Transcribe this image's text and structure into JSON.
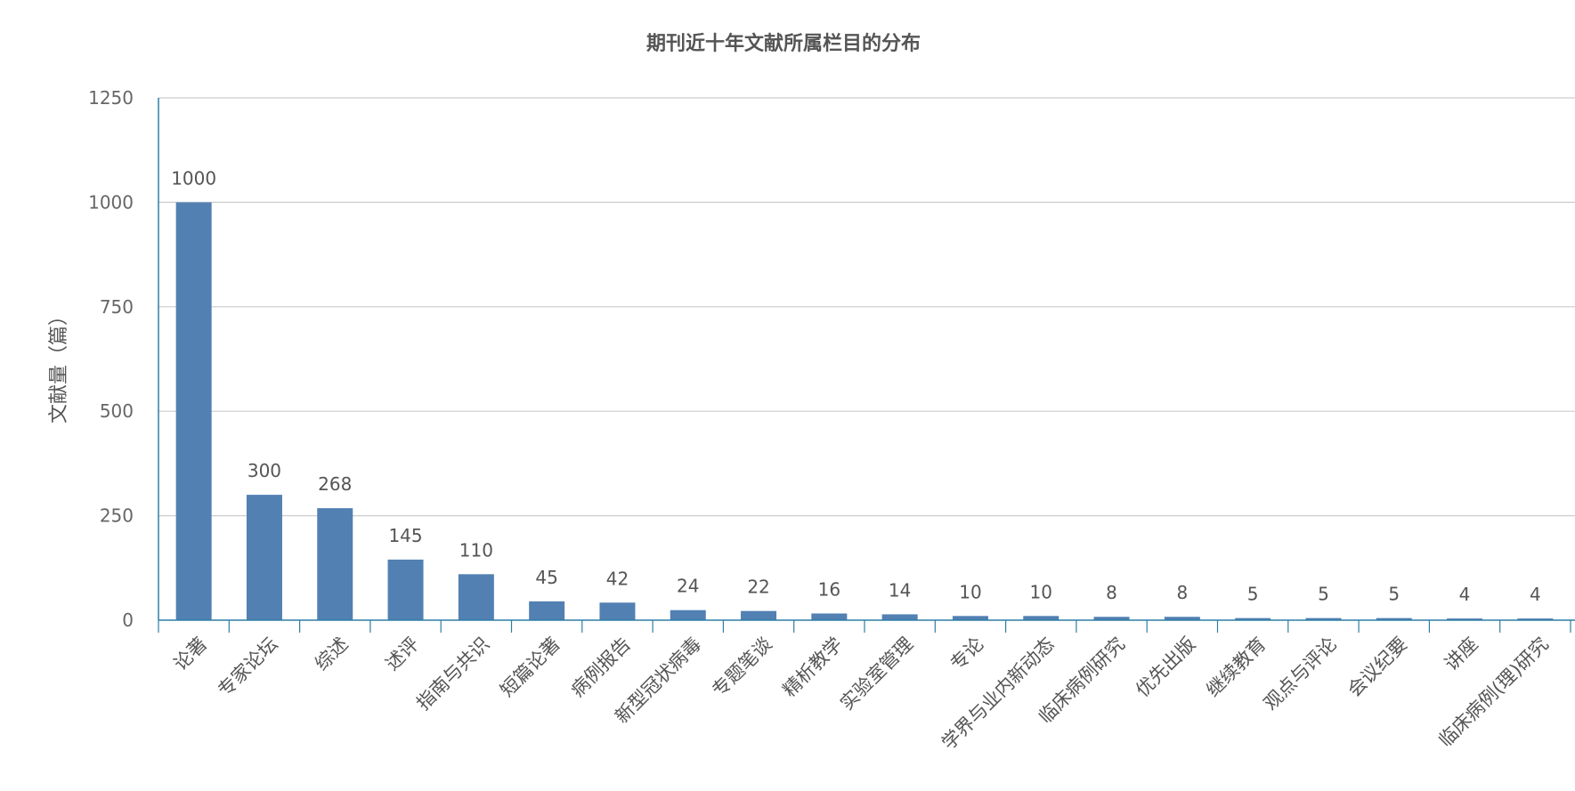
{
  "chart_data": {
    "type": "bar",
    "title": "期刊近十年文献所属栏目的分布",
    "xlabel": "",
    "ylabel": "文献量（篇）",
    "ylim": [
      0,
      1250
    ],
    "yticks": [
      0,
      250,
      500,
      750,
      1000,
      1250
    ],
    "grid": true,
    "legend": "none",
    "categories": [
      "论著",
      "专家论坛",
      "综述",
      "述评",
      "指南与共识",
      "短篇论著",
      "病例报告",
      "新型冠状病毒",
      "专题笔谈",
      "精析教学",
      "实验室管理",
      "专论",
      "学界与业内新动态",
      "临床病例研究",
      "优先出版",
      "继续教育",
      "观点与评论",
      "会议纪要",
      "讲座",
      "临床病例(理)研究"
    ],
    "values": [
      1000,
      300,
      268,
      145,
      110,
      45,
      42,
      24,
      22,
      16,
      14,
      10,
      10,
      8,
      8,
      5,
      5,
      5,
      4,
      4
    ],
    "colors": {
      "bar": "#5280b2",
      "axis": "#2f7ea5",
      "grid": "#cccccc",
      "text": "#555555"
    }
  }
}
